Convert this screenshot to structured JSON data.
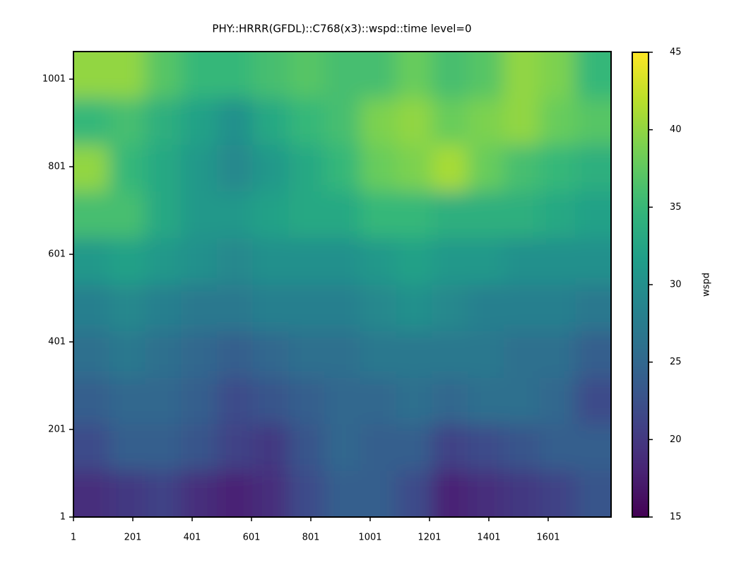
{
  "chart_data": {
    "type": "heatmap",
    "title": "PHY::HRRR(GFDL)::C768(x3)::wspd::time level=0",
    "colorbar_label": "wspd",
    "colormap": "viridis",
    "xlim": [
      1,
      1813
    ],
    "ylim": [
      1,
      1064
    ],
    "clim": [
      15,
      45
    ],
    "xticks": [
      1,
      201,
      401,
      601,
      801,
      1001,
      1201,
      1401,
      1601
    ],
    "yticks": [
      1,
      201,
      401,
      601,
      801,
      1001
    ],
    "cticks": [
      15,
      20,
      25,
      30,
      35,
      40,
      45
    ],
    "z": [
      [
        19,
        20,
        21,
        19,
        18,
        19,
        22,
        24,
        24,
        22,
        18,
        19,
        20,
        21,
        23
      ],
      [
        22,
        24,
        24,
        23,
        21,
        20,
        23,
        25,
        24,
        24,
        21,
        22,
        23,
        24,
        24
      ],
      [
        24,
        25,
        25,
        24,
        22,
        23,
        24,
        25,
        25,
        26,
        25,
        26,
        26,
        25,
        22
      ],
      [
        26,
        27,
        26,
        25,
        24,
        25,
        26,
        26,
        27,
        27,
        27,
        27,
        26,
        26,
        24
      ],
      [
        28,
        29,
        28,
        27,
        27,
        28,
        28,
        28,
        29,
        30,
        29,
        28,
        28,
        28,
        27
      ],
      [
        31,
        32,
        31,
        30,
        29,
        30,
        30,
        30,
        31,
        32,
        31,
        31,
        30,
        30,
        30
      ],
      [
        36,
        36,
        33,
        31,
        31,
        32,
        33,
        33,
        35,
        35,
        34,
        34,
        34,
        33,
        32
      ],
      [
        40,
        35,
        33,
        31,
        29,
        31,
        33,
        35,
        38,
        39,
        41,
        38,
        36,
        35,
        34
      ],
      [
        35,
        36,
        34,
        32,
        30,
        33,
        35,
        36,
        39,
        40,
        38,
        39,
        40,
        38,
        37
      ],
      [
        40,
        40,
        37,
        35,
        35,
        36,
        37,
        36,
        36,
        38,
        36,
        37,
        40,
        39,
        35
      ]
    ]
  }
}
